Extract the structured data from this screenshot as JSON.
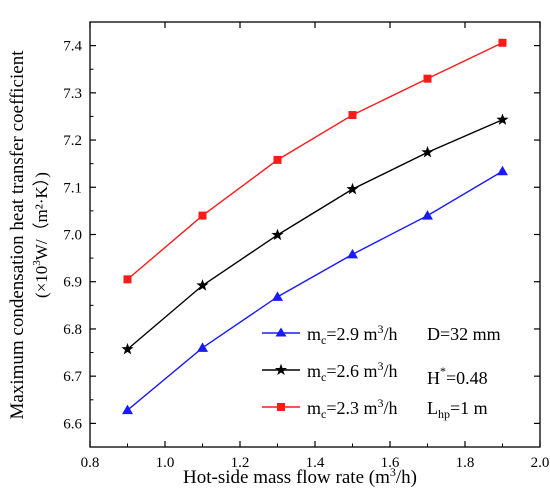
{
  "chart_data": {
    "type": "line",
    "xlabel": "Hot-side mass flow rate (m³/h)",
    "ylabel_line1": "Maximum condensation heat transfer coefficient",
    "ylabel_line2": "(×10³W/（m²·K）)",
    "xlim": [
      0.8,
      2.0
    ],
    "ylim": [
      6.55,
      7.45
    ],
    "xticks": [
      0.8,
      1.0,
      1.2,
      1.4,
      1.6,
      1.8,
      2.0
    ],
    "yticks": [
      6.6,
      6.7,
      6.8,
      6.9,
      7.0,
      7.1,
      7.2,
      7.3,
      7.4
    ],
    "xtick_labels": [
      "0.8",
      "1.0",
      "1.2",
      "1.4",
      "1.6",
      "1.8",
      "2.0"
    ],
    "ytick_labels": [
      "6.6",
      "6.7",
      "6.8",
      "6.9",
      "7.0",
      "7.1",
      "7.2",
      "7.3",
      "7.4"
    ],
    "grid": false,
    "legend_position": "bottom-right",
    "x": [
      0.9,
      1.1,
      1.3,
      1.5,
      1.7,
      1.9
    ],
    "series": [
      {
        "name": "m_c=2.9 m³/h",
        "marker": "triangle",
        "color": "#1a1aff",
        "values": [
          6.628,
          6.76,
          6.868,
          6.958,
          7.04,
          7.134
        ]
      },
      {
        "name": "m_c=2.6 m³/h",
        "marker": "star",
        "color": "#000000",
        "values": [
          6.757,
          6.892,
          6.999,
          7.096,
          7.174,
          7.243
        ]
      },
      {
        "name": "m_c=2.3 m³/h",
        "marker": "square",
        "color": "#ff1a1a",
        "values": [
          6.905,
          7.04,
          7.158,
          7.253,
          7.33,
          7.406
        ]
      }
    ],
    "annotations": [
      "D=32 mm",
      "H*=0.48",
      "L_hp=1 m"
    ]
  }
}
